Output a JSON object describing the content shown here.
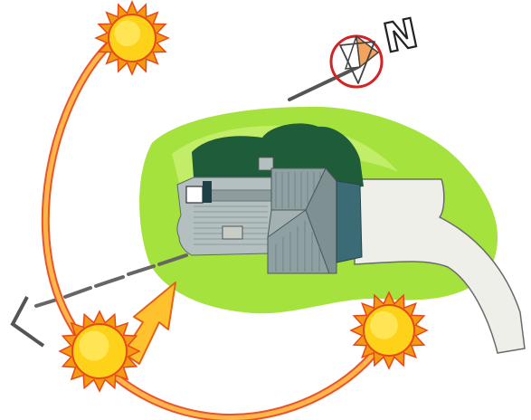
{
  "diagram": {
    "subject": "sun-path-site-orientation",
    "compass": {
      "north_label": "N"
    },
    "colors": {
      "background": "#ffffff",
      "lawn": "#9fe03a",
      "lawn_light": "#c9ef6a",
      "trees": "#1e5e3a",
      "roof_gray": "#9aa5a6",
      "roof_shadow": "#3f6f78",
      "driveway": "#eeeeea",
      "sun_core": "#ffd21a",
      "sun_rim": "#f29a10",
      "sun_ray": "#e8471a",
      "arc": "#ffb347",
      "arc_edge": "#e8552a",
      "arrow": "#ffc12e",
      "compass_ring": "#d22424",
      "compass_orange": "#f2a35e"
    },
    "suns": [
      "sunrise-sun",
      "midday-sun",
      "sunset-sun"
    ]
  }
}
